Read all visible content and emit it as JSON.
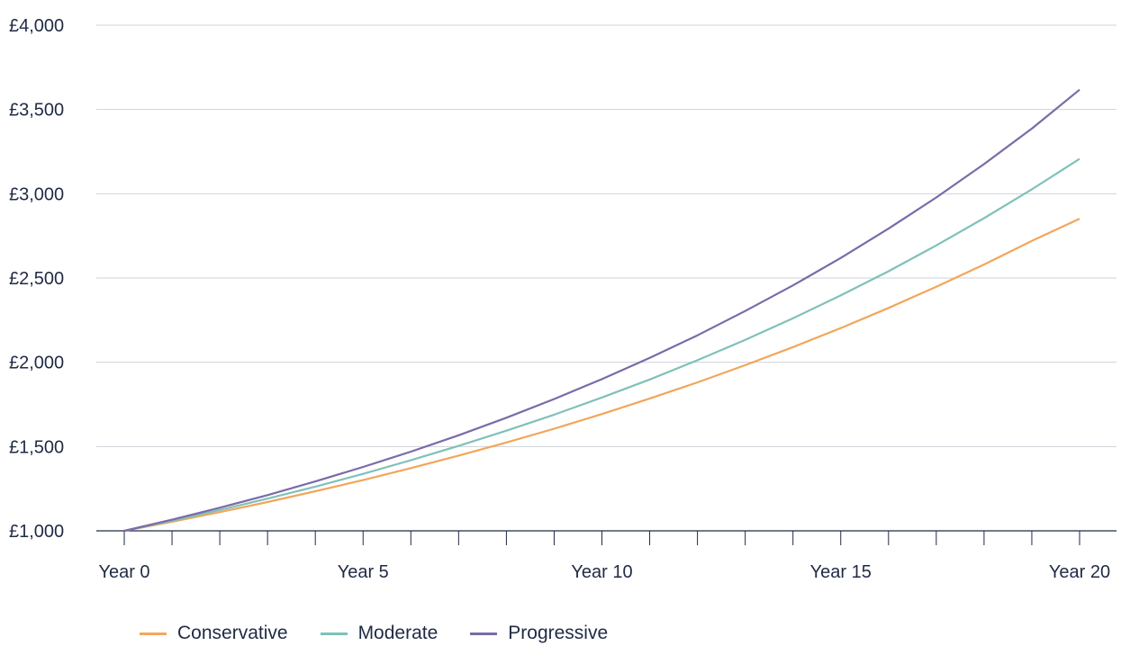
{
  "chart_data": {
    "type": "line",
    "title": "",
    "xlabel": "",
    "ylabel": "",
    "x": [
      0,
      1,
      2,
      3,
      4,
      5,
      6,
      7,
      8,
      9,
      10,
      11,
      12,
      13,
      14,
      15,
      16,
      17,
      18,
      19,
      20
    ],
    "x_tick_values": [
      0,
      5,
      10,
      15,
      20
    ],
    "x_tick_labels": [
      "Year 0",
      "Year 5",
      "Year 10",
      "Year 15",
      "Year 20"
    ],
    "y_tick_values": [
      1000,
      1500,
      2000,
      2500,
      3000,
      3500,
      4000
    ],
    "y_tick_labels": [
      "£1,000",
      "£1,500",
      "£2,000",
      "£2,500",
      "£3,000",
      "£3,500",
      "£4,000"
    ],
    "ylim": [
      1000,
      4000
    ],
    "xlim": [
      0,
      20
    ],
    "grid": "horizontal",
    "legend_position": "bottom-left",
    "series": [
      {
        "name": "Conservative",
        "color": "#f2a65a",
        "values": [
          1000,
          1054,
          1111,
          1171,
          1235,
          1301,
          1372,
          1446,
          1524,
          1606,
          1693,
          1785,
          1881,
          1983,
          2090,
          2203,
          2322,
          2448,
          2580,
          2720,
          2852
        ]
      },
      {
        "name": "Moderate",
        "color": "#7fc1b9",
        "values": [
          1000,
          1060,
          1124,
          1191,
          1262,
          1338,
          1419,
          1504,
          1594,
          1689,
          1791,
          1898,
          2012,
          2133,
          2261,
          2397,
          2540,
          2693,
          2855,
          3026,
          3207
        ]
      },
      {
        "name": "Progressive",
        "color": "#7b6aa8",
        "values": [
          1000,
          1066,
          1137,
          1212,
          1293,
          1379,
          1470,
          1567,
          1671,
          1782,
          1900,
          2026,
          2160,
          2304,
          2456,
          2619,
          2793,
          2978,
          3176,
          3386,
          3617
        ]
      }
    ]
  }
}
